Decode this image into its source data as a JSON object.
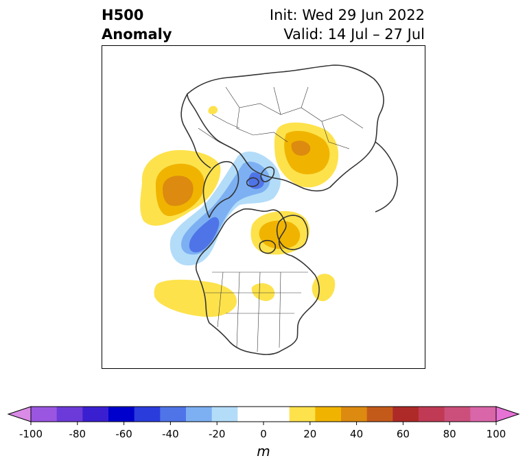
{
  "title": {
    "left_line1": "H500",
    "left_line2": "Anomaly",
    "right_line1": "Init: Wed 29 Jun 2022",
    "right_line2": "Valid: 14 Jul – 27 Jul"
  },
  "colorbar": {
    "unit_label": "m",
    "min": -100,
    "max": 100,
    "step": 10,
    "ticks": [
      "-100",
      "-80",
      "-60",
      "-40",
      "-20",
      "0",
      "20",
      "40",
      "60",
      "80",
      "100"
    ],
    "colors": [
      "#d98be6",
      "#9a56e0",
      "#6c3ad8",
      "#3a1fd0",
      "#0000cc",
      "#2a3cdc",
      "#4f74e8",
      "#7db0f2",
      "#b3dcf9",
      "#ffffff",
      "#ffffff",
      "#fde24c",
      "#f0b400",
      "#dc8a10",
      "#c45a1a",
      "#ae2a28",
      "#c03a55",
      "#cc4f7b",
      "#d866a8",
      "#e672d6"
    ]
  },
  "colors": {
    "yellow": "#fde24c",
    "gold": "#f0b400",
    "orange": "#dc8a10",
    "light_blue": "#b3dcf9",
    "mid_blue": "#7db0f2",
    "blue": "#4f74e8",
    "coast": "#333333"
  }
}
